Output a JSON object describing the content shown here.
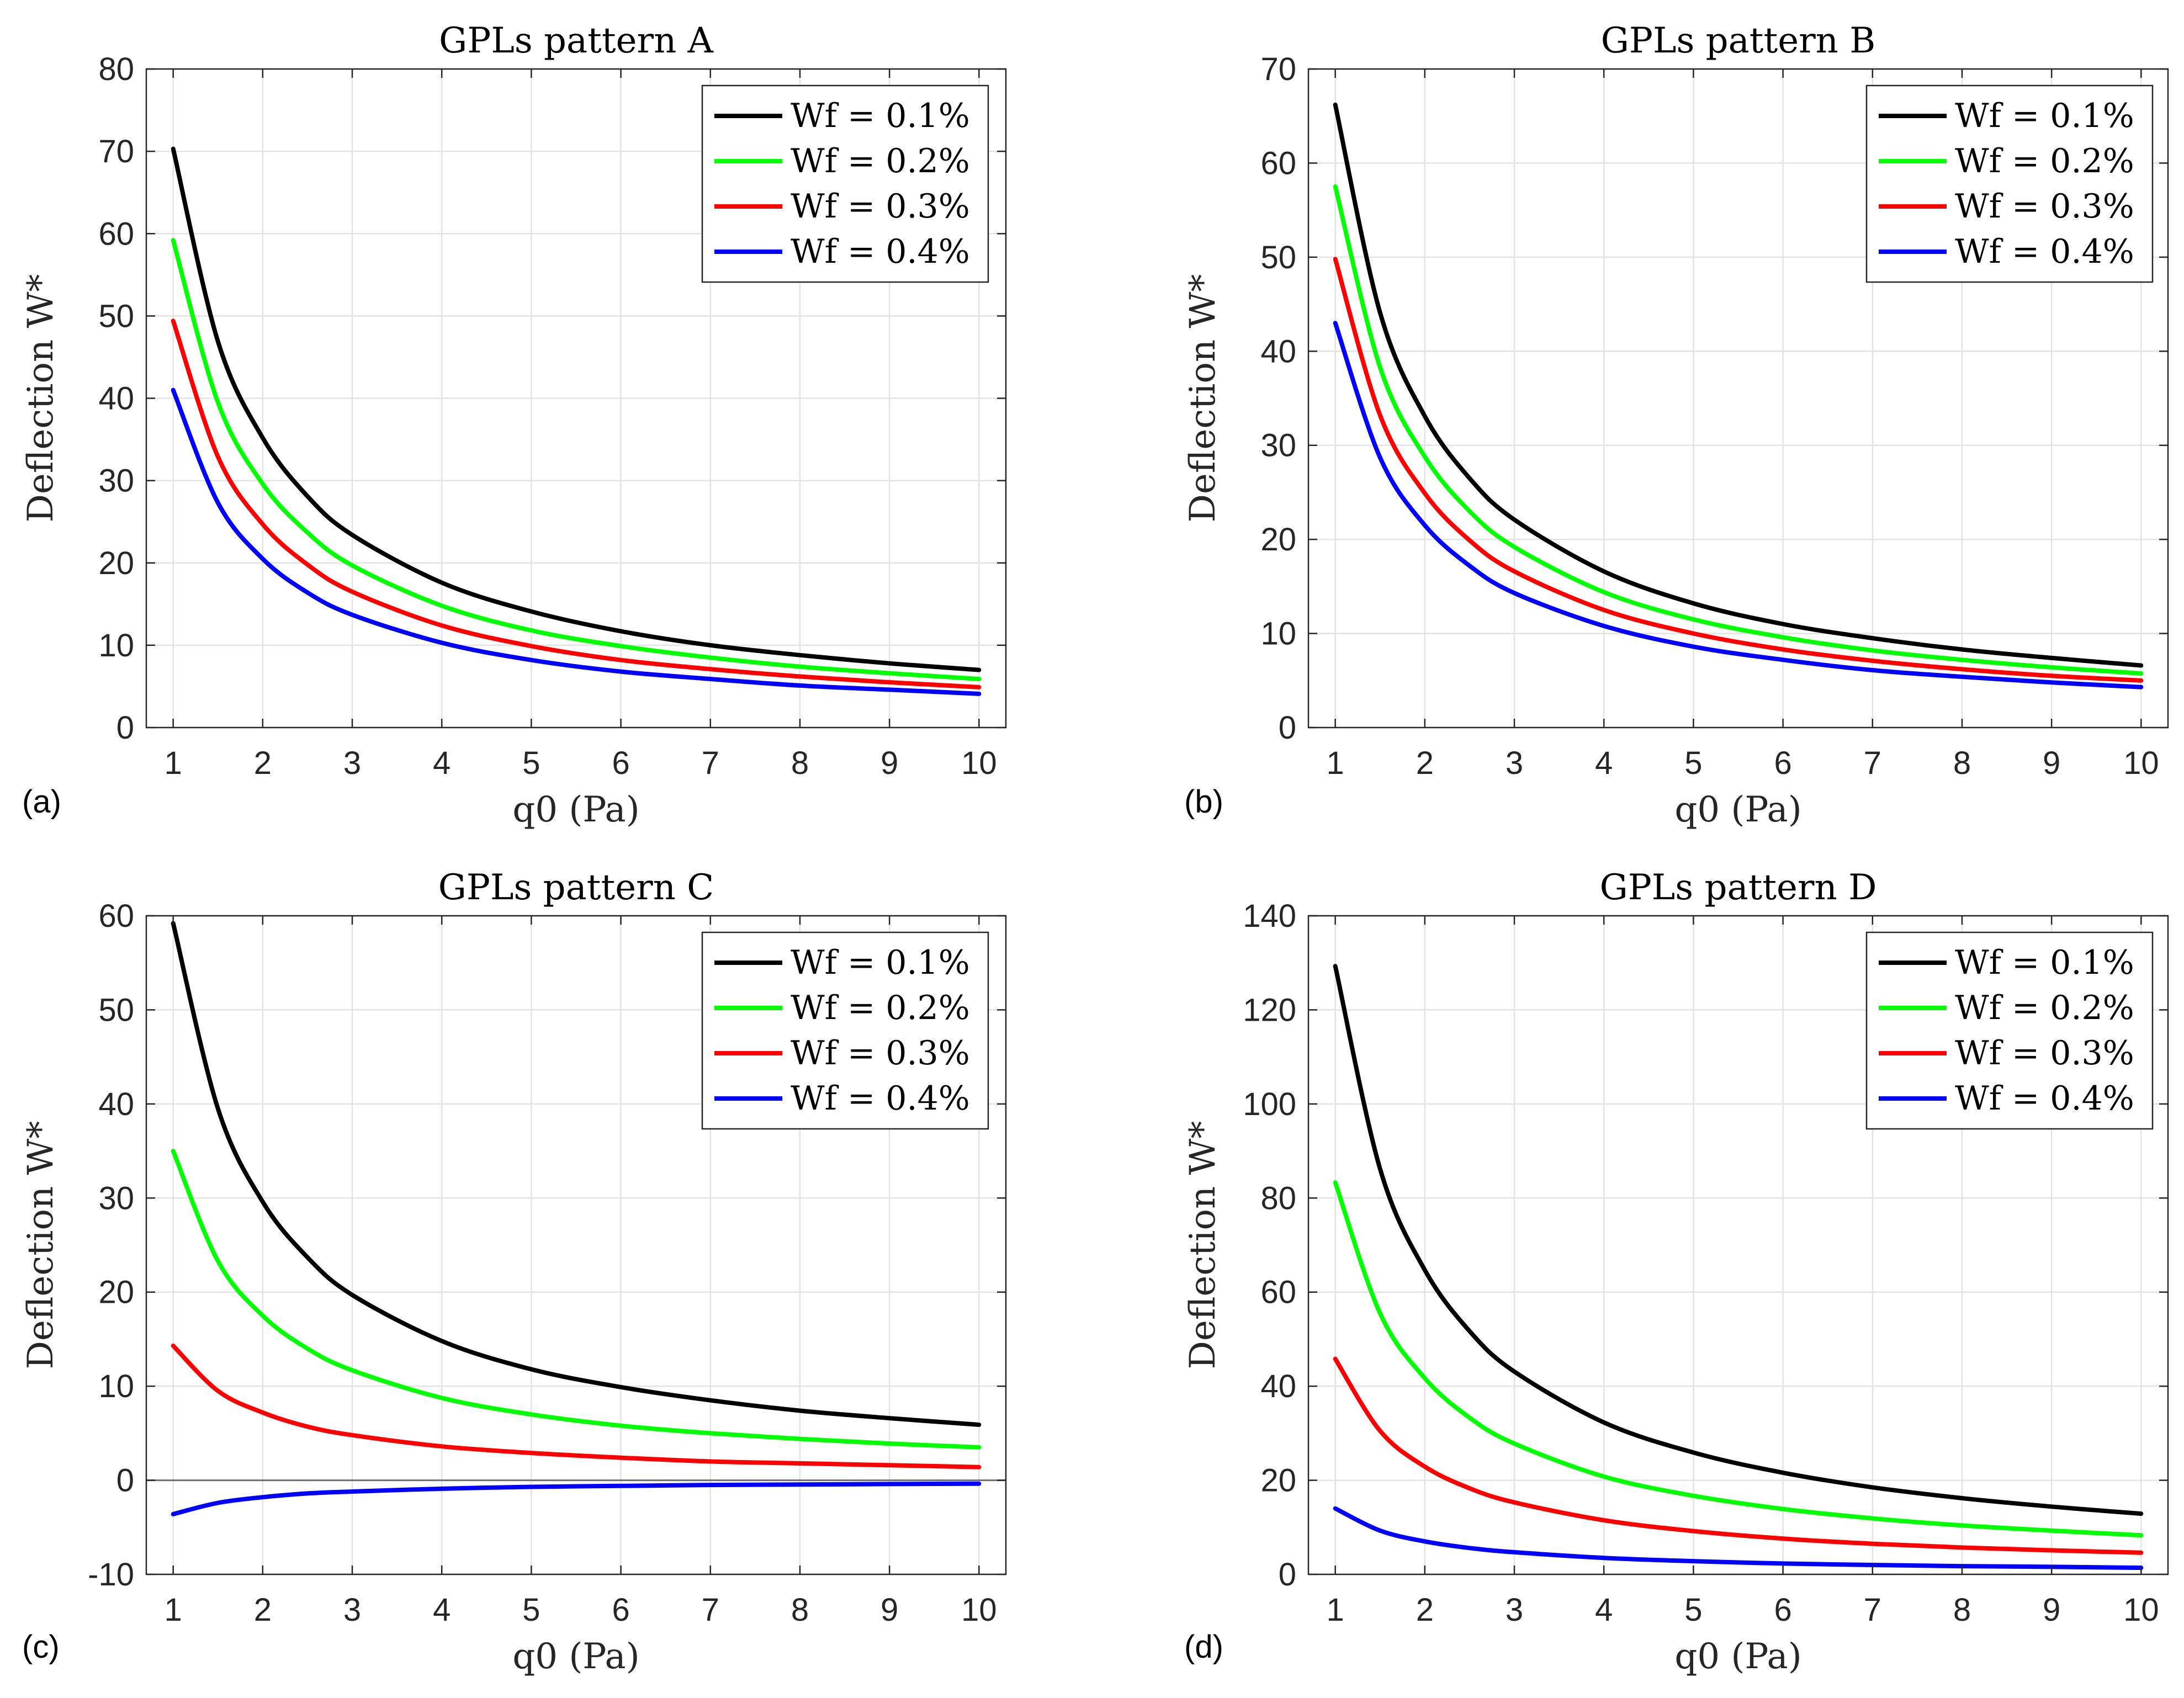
{
  "chart_data": [
    {
      "panel": "(a)",
      "type": "line",
      "title": "GPLs pattern A",
      "xlabel": "q0 (Pa)",
      "ylabel": "Deflection W*",
      "xlim": [
        0.7,
        10.3
      ],
      "ylim": [
        0,
        80
      ],
      "xticks": [
        "1",
        "2",
        "3",
        "4",
        "5",
        "6",
        "7",
        "8",
        "9",
        "10"
      ],
      "yticks": [
        "0",
        "10",
        "20",
        "30",
        "40",
        "50",
        "60",
        "70",
        "80"
      ],
      "grid": true,
      "legend": "top-right",
      "x": [
        1,
        1.5,
        2,
        2.5,
        3,
        4,
        5,
        6,
        7,
        8,
        9,
        10
      ],
      "series": [
        {
          "name": "Wf = 0.1%",
          "color": "#000000",
          "values": [
            70.3,
            46.9,
            35.2,
            28.1,
            23.4,
            17.6,
            14.1,
            11.7,
            10.0,
            8.8,
            7.8,
            7.0
          ]
        },
        {
          "name": "Wf = 0.2%",
          "color": "#00ff00",
          "values": [
            59.2,
            39.5,
            29.6,
            23.7,
            19.7,
            14.8,
            11.8,
            9.9,
            8.5,
            7.4,
            6.6,
            5.9
          ]
        },
        {
          "name": "Wf = 0.3%",
          "color": "#ff0000",
          "values": [
            49.4,
            32.9,
            24.7,
            19.8,
            16.5,
            12.4,
            9.9,
            8.2,
            7.1,
            6.2,
            5.5,
            4.9
          ]
        },
        {
          "name": "Wf = 0.4%",
          "color": "#0000ff",
          "values": [
            41.0,
            27.3,
            20.5,
            16.4,
            13.7,
            10.3,
            8.2,
            6.8,
            5.9,
            5.1,
            4.6,
            4.1
          ]
        }
      ]
    },
    {
      "panel": "(b)",
      "type": "line",
      "title": "GPLs pattern B",
      "xlabel": "q0 (Pa)",
      "ylabel": "Deflection W*",
      "xlim": [
        0.7,
        10.3
      ],
      "ylim": [
        0,
        70
      ],
      "xticks": [
        "1",
        "2",
        "3",
        "4",
        "5",
        "6",
        "7",
        "8",
        "9",
        "10"
      ],
      "yticks": [
        "0",
        "10",
        "20",
        "30",
        "40",
        "50",
        "60",
        "70"
      ],
      "grid": true,
      "legend": "top-right",
      "x": [
        1,
        1.5,
        2,
        2.5,
        3,
        4,
        5,
        6,
        7,
        8,
        9,
        10
      ],
      "series": [
        {
          "name": "Wf = 0.1%",
          "color": "#000000",
          "values": [
            66.2,
            44.1,
            33.1,
            26.5,
            22.1,
            16.6,
            13.2,
            11.0,
            9.5,
            8.3,
            7.4,
            6.6
          ]
        },
        {
          "name": "Wf = 0.2%",
          "color": "#00ff00",
          "values": [
            57.5,
            38.3,
            28.8,
            23.0,
            19.2,
            14.4,
            11.5,
            9.6,
            8.2,
            7.2,
            6.4,
            5.75
          ]
        },
        {
          "name": "Wf = 0.3%",
          "color": "#ff0000",
          "values": [
            49.8,
            33.2,
            24.9,
            19.9,
            16.6,
            12.5,
            10.0,
            8.3,
            7.1,
            6.2,
            5.5,
            5.0
          ]
        },
        {
          "name": "Wf = 0.4%",
          "color": "#0000ff",
          "values": [
            43.0,
            28.7,
            21.5,
            17.2,
            14.3,
            10.8,
            8.6,
            7.2,
            6.1,
            5.4,
            4.8,
            4.3
          ]
        }
      ]
    },
    {
      "panel": "(c)",
      "type": "line",
      "title": "GPLs pattern C",
      "xlabel": "q0 (Pa)",
      "ylabel": "Deflection W*",
      "xlim": [
        0.7,
        10.3
      ],
      "ylim": [
        -10,
        60
      ],
      "xticks": [
        "1",
        "2",
        "3",
        "4",
        "5",
        "6",
        "7",
        "8",
        "9",
        "10"
      ],
      "yticks": [
        "-10",
        "0",
        "10",
        "20",
        "30",
        "40",
        "50",
        "60"
      ],
      "grid": true,
      "legend": "top-right",
      "x": [
        1,
        1.5,
        2,
        2.5,
        3,
        4,
        5,
        6,
        7,
        8,
        9,
        10
      ],
      "series": [
        {
          "name": "Wf = 0.1%",
          "color": "#000000",
          "values": [
            59.2,
            39.5,
            29.6,
            23.7,
            19.7,
            14.8,
            11.8,
            9.9,
            8.5,
            7.4,
            6.6,
            5.9
          ]
        },
        {
          "name": "Wf = 0.2%",
          "color": "#00ff00",
          "values": [
            35.0,
            23.3,
            17.5,
            14.0,
            11.7,
            8.75,
            7.0,
            5.8,
            5.0,
            4.4,
            3.9,
            3.5
          ]
        },
        {
          "name": "Wf = 0.3%",
          "color": "#ff0000",
          "values": [
            14.3,
            9.5,
            7.2,
            5.7,
            4.8,
            3.6,
            2.9,
            2.4,
            2.0,
            1.8,
            1.6,
            1.4
          ]
        },
        {
          "name": "Wf = 0.4%",
          "color": "#0000ff",
          "values": [
            -3.6,
            -2.4,
            -1.8,
            -1.4,
            -1.2,
            -0.9,
            -0.7,
            -0.6,
            -0.5,
            -0.45,
            -0.4,
            -0.36
          ]
        }
      ]
    },
    {
      "panel": "(d)",
      "type": "line",
      "title": "GPLs pattern D",
      "xlabel": "q0 (Pa)",
      "ylabel": "Deflection W*",
      "xlim": [
        0.7,
        10.3
      ],
      "ylim": [
        0,
        140
      ],
      "xticks": [
        "1",
        "2",
        "3",
        "4",
        "5",
        "6",
        "7",
        "8",
        "9",
        "10"
      ],
      "yticks": [
        "0",
        "20",
        "40",
        "60",
        "80",
        "100",
        "120",
        "140"
      ],
      "grid": true,
      "legend": "top-right",
      "x": [
        1,
        1.5,
        2,
        2.5,
        3,
        4,
        5,
        6,
        7,
        8,
        9,
        10
      ],
      "series": [
        {
          "name": "Wf = 0.1%",
          "color": "#000000",
          "values": [
            129.3,
            86.2,
            64.7,
            51.7,
            43.1,
            32.3,
            25.9,
            21.6,
            18.5,
            16.2,
            14.4,
            12.9
          ]
        },
        {
          "name": "Wf = 0.2%",
          "color": "#00ff00",
          "values": [
            83.3,
            55.5,
            41.7,
            33.3,
            27.8,
            20.8,
            16.7,
            13.9,
            11.9,
            10.4,
            9.3,
            8.3
          ]
        },
        {
          "name": "Wf = 0.3%",
          "color": "#ff0000",
          "values": [
            45.8,
            30.5,
            22.9,
            18.3,
            15.3,
            11.5,
            9.2,
            7.6,
            6.5,
            5.7,
            5.1,
            4.6
          ]
        },
        {
          "name": "Wf = 0.4%",
          "color": "#0000ff",
          "values": [
            14.0,
            9.3,
            7.0,
            5.6,
            4.7,
            3.5,
            2.8,
            2.3,
            2.0,
            1.75,
            1.6,
            1.4
          ]
        }
      ]
    }
  ]
}
